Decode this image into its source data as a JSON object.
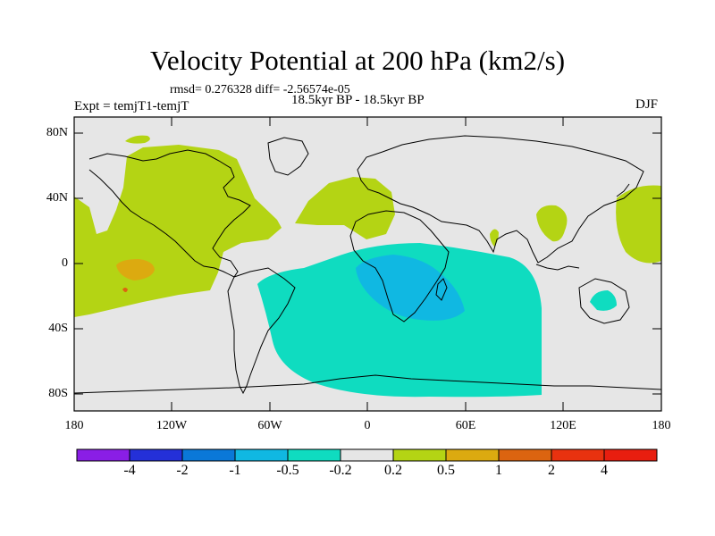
{
  "header": {
    "title": "Velocity Potential at 200 hPa (km2/s)",
    "stats": "rmsd= 0.276328 diff= -2.56574e-05",
    "expt": "Expt = temjT1-temjT",
    "period": "18.5kyr BP - 18.5kyr BP",
    "season": "DJF"
  },
  "axes": {
    "y_labels": [
      "80N",
      "40N",
      "0",
      "40S",
      "80S"
    ],
    "x_labels": [
      "180",
      "120W",
      "60W",
      "0",
      "60E",
      "120E",
      "180"
    ]
  },
  "colorbar": {
    "labels": [
      "-4",
      "-2",
      "-1",
      "-0.5",
      "-0.2",
      "0.2",
      "0.5",
      "1",
      "2",
      "4"
    ],
    "colors": [
      "#8a1ee6",
      "#2430d8",
      "#0a78d8",
      "#10b8e2",
      "#0fdcc0",
      "#e6e6e6",
      "#b4d414",
      "#dcaa10",
      "#dc6410",
      "#e8320f",
      "#e81e0f"
    ]
  },
  "colors": {
    "ocean_bg": "#e6e6e6",
    "positive_weak": "#b4d414",
    "positive_mid": "#dcaa10",
    "negative_weak": "#0fdcc0",
    "negative_mid": "#10b8e2"
  }
}
